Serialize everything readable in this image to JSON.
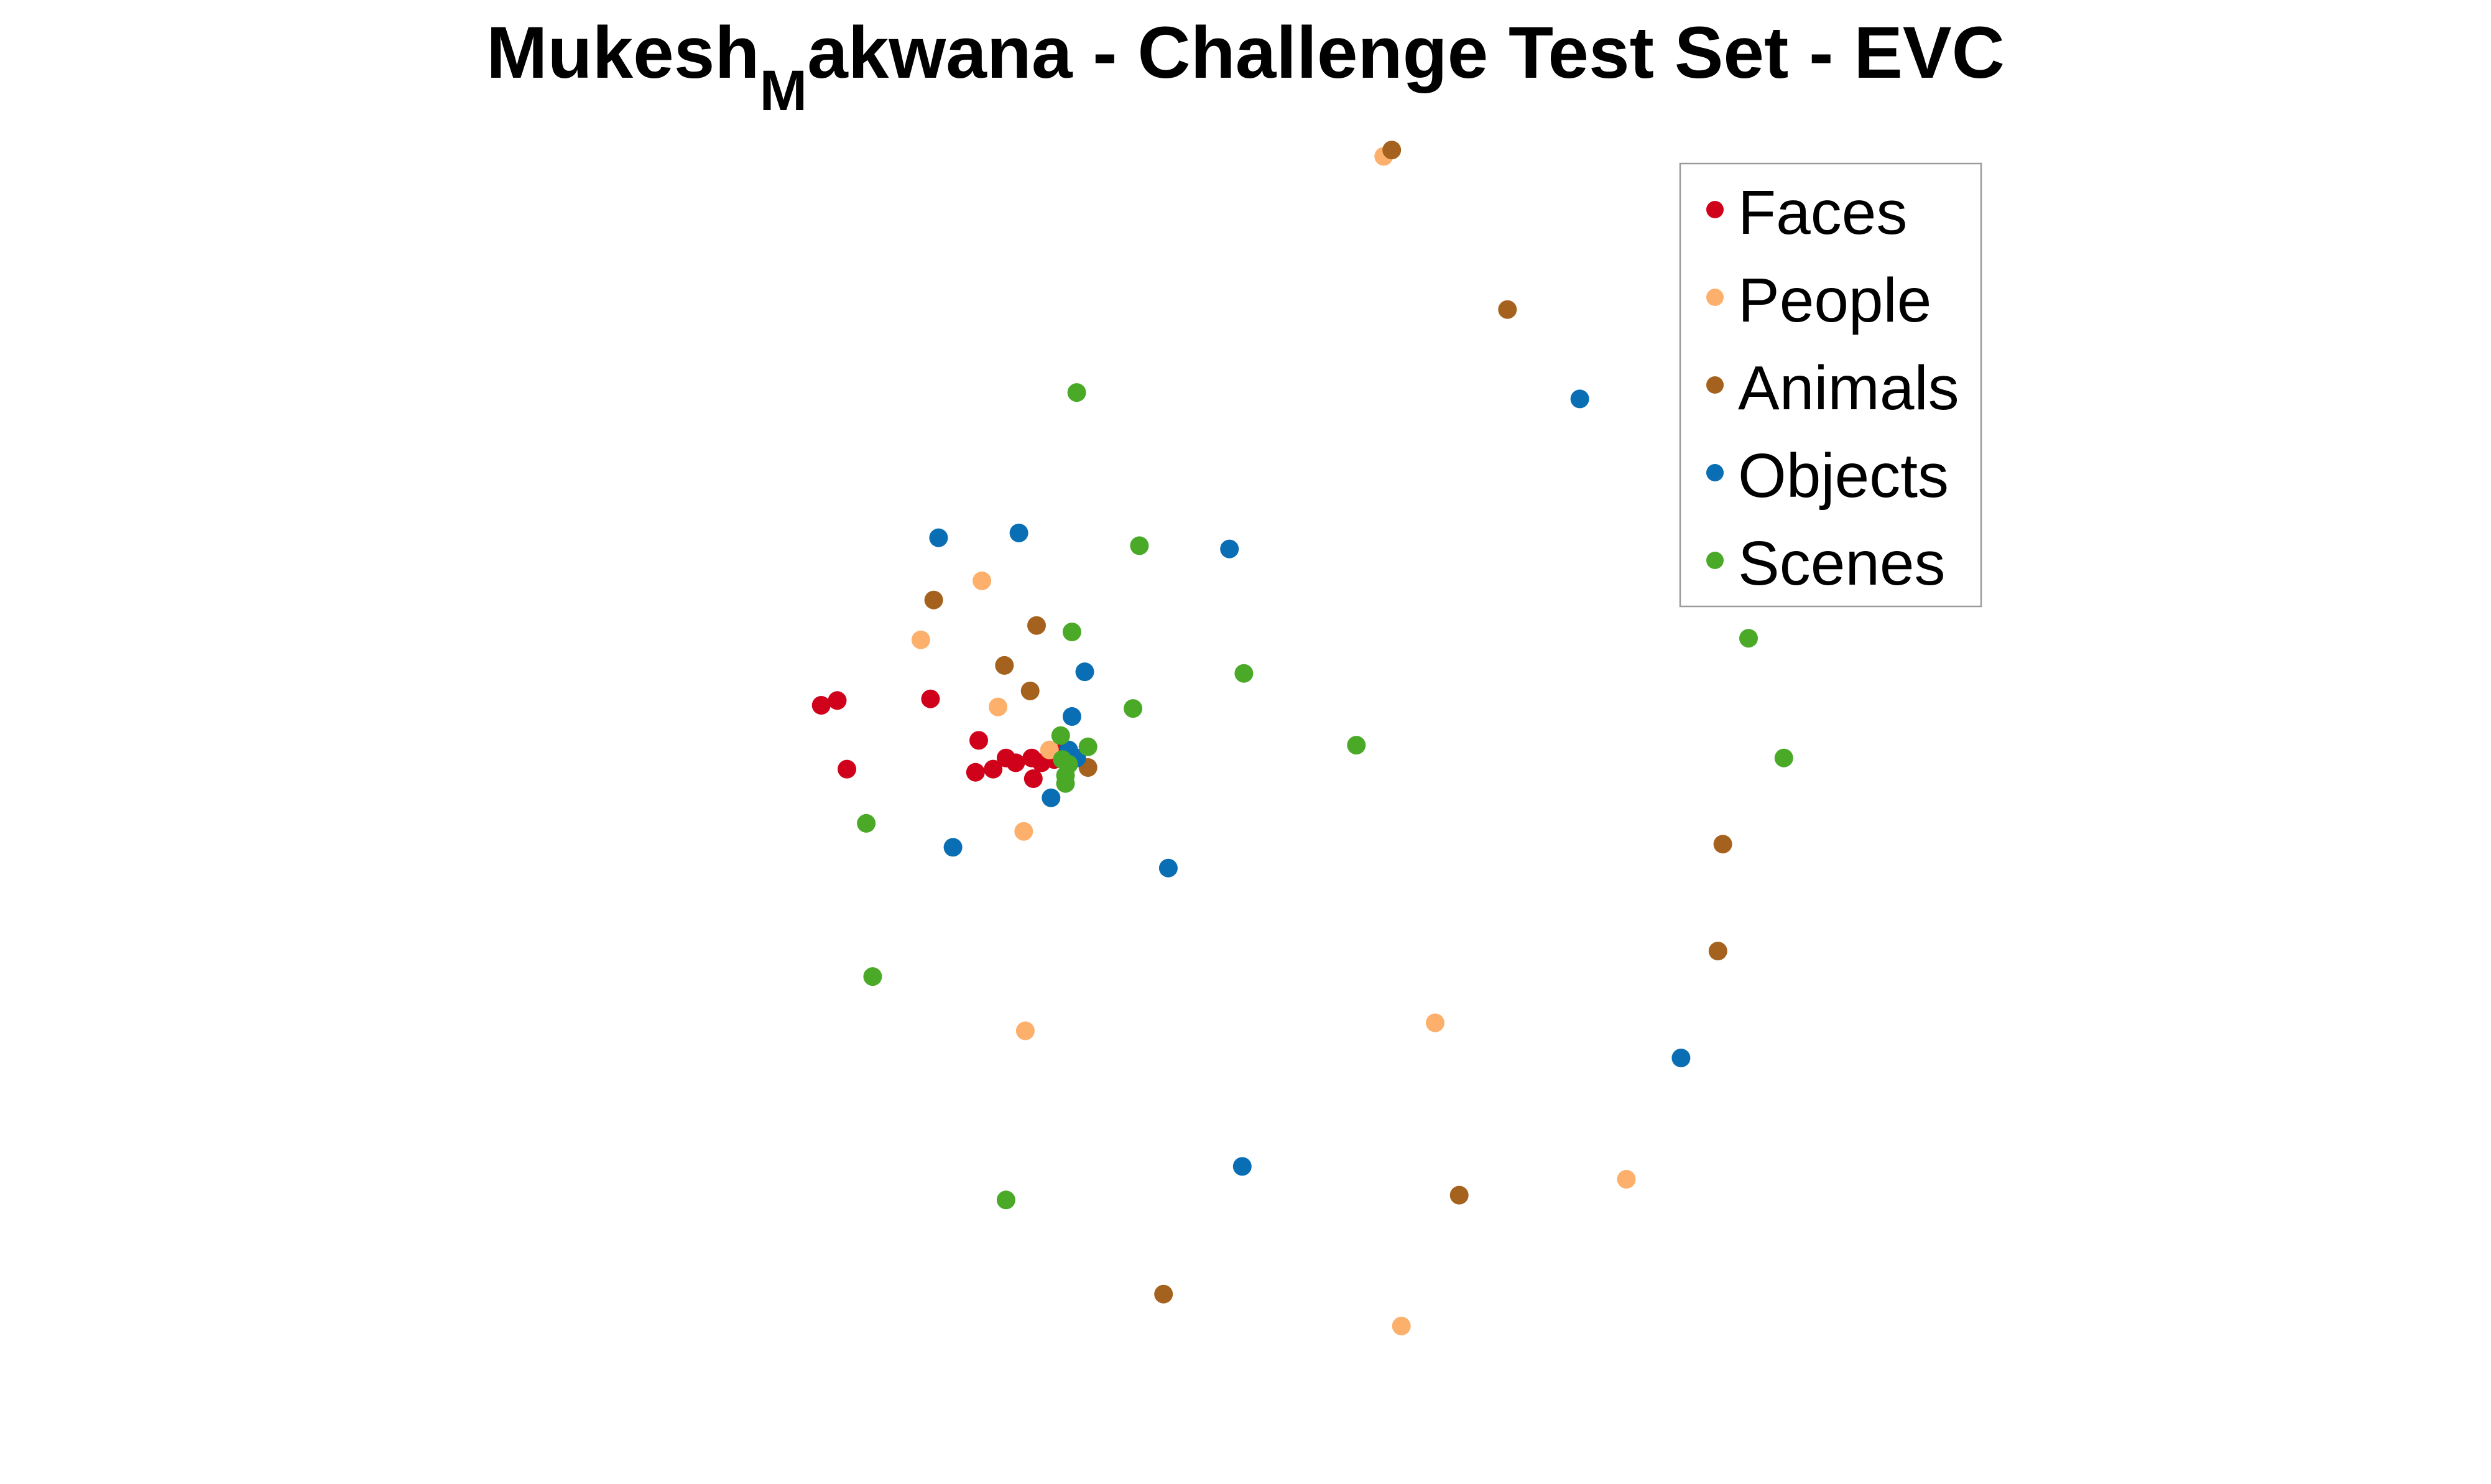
{
  "chart_data": {
    "type": "scatter",
    "title": {
      "main": "Mukesh",
      "sub": "M",
      "rest": "akwana - Challenge Test Set - EVC"
    },
    "xlabel": "",
    "ylabel": "",
    "xlim": [
      0,
      1550
    ],
    "ylim": [
      0,
      930
    ],
    "axes_visible": false,
    "grid": false,
    "legend_position": "top-right",
    "series": [
      {
        "name": "Faces",
        "color": "#d0021b",
        "points": [
          [
            511,
            442
          ],
          [
            521,
            439
          ],
          [
            527,
            482
          ],
          [
            579,
            438
          ],
          [
            609,
            464
          ],
          [
            607,
            484
          ],
          [
            618,
            482
          ],
          [
            626,
            475
          ],
          [
            632,
            478
          ],
          [
            642,
            475
          ],
          [
            643,
            488
          ],
          [
            648,
            478
          ],
          [
            656,
            476
          ],
          [
            660,
            472
          ]
        ]
      },
      {
        "name": "People",
        "color": "#fdb06b",
        "points": [
          [
            861,
            98
          ],
          [
            611,
            364
          ],
          [
            573,
            401
          ],
          [
            621,
            443
          ],
          [
            653,
            470
          ],
          [
            637,
            521
          ],
          [
            638,
            646
          ],
          [
            893,
            641
          ],
          [
            1012,
            739
          ],
          [
            872,
            831
          ]
        ]
      },
      {
        "name": "Animals",
        "color": "#a5621e",
        "points": [
          [
            866,
            94
          ],
          [
            938,
            194
          ],
          [
            1051,
            268
          ],
          [
            581,
            376
          ],
          [
            645,
            392
          ],
          [
            625,
            417
          ],
          [
            641,
            433
          ],
          [
            677,
            481
          ],
          [
            1072,
            529
          ],
          [
            1069,
            596
          ],
          [
            908,
            749
          ],
          [
            724,
            811
          ]
        ]
      },
      {
        "name": "Objects",
        "color": "#0a6eb4",
        "points": [
          [
            983,
            250
          ],
          [
            584,
            337
          ],
          [
            634,
            334
          ],
          [
            765,
            344
          ],
          [
            675,
            421
          ],
          [
            667,
            449
          ],
          [
            665,
            470
          ],
          [
            670,
            475
          ],
          [
            654,
            500
          ],
          [
            593,
            531
          ],
          [
            727,
            544
          ],
          [
            1046,
            663
          ],
          [
            773,
            731
          ]
        ]
      },
      {
        "name": "Scenes",
        "color": "#4aaa28",
        "points": [
          [
            670,
            246
          ],
          [
            709,
            342
          ],
          [
            667,
            396
          ],
          [
            705,
            444
          ],
          [
            774,
            422
          ],
          [
            844,
            467
          ],
          [
            660,
            461
          ],
          [
            677,
            468
          ],
          [
            661,
            476
          ],
          [
            665,
            479
          ],
          [
            663,
            486
          ],
          [
            663,
            491
          ],
          [
            1088,
            400
          ],
          [
            1110,
            475
          ],
          [
            539,
            516
          ],
          [
            543,
            612
          ],
          [
            626,
            752
          ]
        ]
      }
    ]
  }
}
